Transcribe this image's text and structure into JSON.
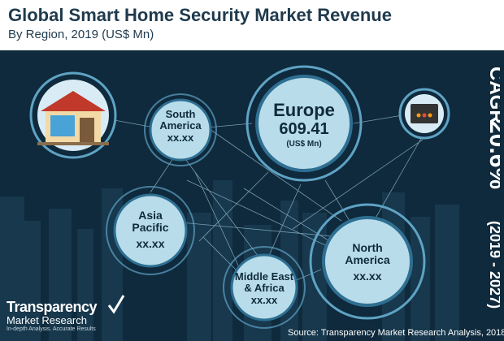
{
  "chart_data": {
    "type": "bubble",
    "title": "Global Smart Home Security Market Revenue",
    "subtitle": "By Region, 2019 (US$ Mn)",
    "regions": [
      {
        "name_line1": "Europe",
        "name_line2": "",
        "value": "609.41",
        "unit": "(US$ Mn)"
      },
      {
        "name_line1": "South",
        "name_line2": "America",
        "value": "xx.xx"
      },
      {
        "name_line1": "Asia",
        "name_line2": "Pacific",
        "value": "xx.xx"
      },
      {
        "name_line1": "North",
        "name_line2": "America",
        "value": "xx.xx"
      },
      {
        "name_line1": "Middle East",
        "name_line2": "& Africa",
        "value": "xx.xx"
      }
    ],
    "cagr_label": "CAGR",
    "cagr_value": "20.6%",
    "cagr_period": "(2019 - 2027)"
  },
  "branding": {
    "logo_line1": "Transparency",
    "logo_line2": "Market Research",
    "tagline": "In-depth Analysis. Accurate Results",
    "source": "Source: Transparency Market Research Analysis, 2018"
  },
  "colors": {
    "background": "#0f2a3c",
    "bubble_fill": "#b8dcea",
    "ring": "#5fa3c4",
    "title": "#1f3a4d"
  }
}
